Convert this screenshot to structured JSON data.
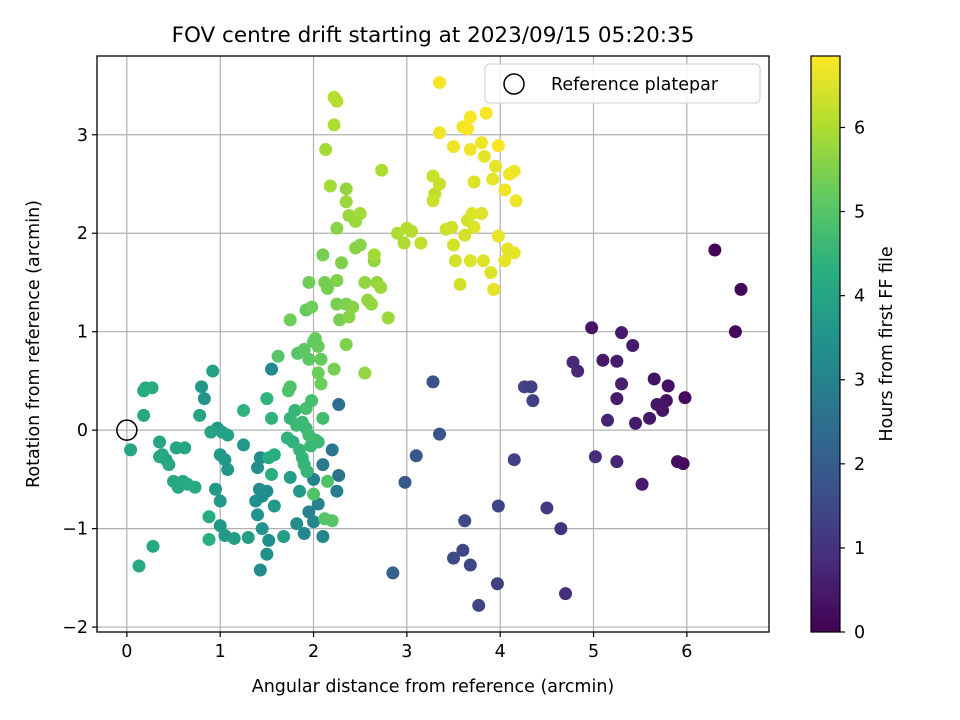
{
  "chart_data": {
    "type": "scatter",
    "title": "FOV centre drift starting at 2023/09/15 05:20:35",
    "xlabel": "Angular distance from reference (arcmin)",
    "ylabel": "Rotation from reference (arcmin)",
    "xlim": [
      -0.32,
      6.88
    ],
    "ylim": [
      -2.05,
      3.8
    ],
    "x_ticks": [
      0,
      1,
      2,
      3,
      4,
      5,
      6
    ],
    "y_ticks": [
      -2,
      -1,
      0,
      1,
      2,
      3
    ],
    "x_tick_labels": [
      "0",
      "1",
      "2",
      "3",
      "4",
      "5",
      "6"
    ],
    "y_tick_labels": [
      "−2",
      "−1",
      "0",
      "1",
      "2",
      "3"
    ],
    "grid": true,
    "legend": {
      "placement": "top-right",
      "entries": [
        "Reference platepar"
      ]
    },
    "reference_point": {
      "x": 0,
      "y": 0
    },
    "colorbar": {
      "label": "Hours from first FF file",
      "range": [
        0,
        6.85
      ],
      "ticks": [
        0,
        1,
        2,
        3,
        4,
        5,
        6
      ],
      "tick_labels": [
        "0",
        "1",
        "2",
        "3",
        "4",
        "5",
        "6"
      ],
      "colormap": "viridis"
    },
    "points": [
      {
        "x": 6.3,
        "y": 1.83,
        "c": 0.05
      },
      {
        "x": 6.58,
        "y": 1.43,
        "c": 0.1
      },
      {
        "x": 6.52,
        "y": 1.0,
        "c": 0.15
      },
      {
        "x": 4.98,
        "y": 1.04,
        "c": 0.4
      },
      {
        "x": 5.3,
        "y": 0.99,
        "c": 0.5
      },
      {
        "x": 5.1,
        "y": 0.71,
        "c": 0.45
      },
      {
        "x": 5.25,
        "y": 0.7,
        "c": 0.55
      },
      {
        "x": 5.42,
        "y": 0.86,
        "c": 0.5
      },
      {
        "x": 4.78,
        "y": 0.69,
        "c": 0.8
      },
      {
        "x": 4.83,
        "y": 0.6,
        "c": 0.75
      },
      {
        "x": 5.3,
        "y": 0.47,
        "c": 0.6
      },
      {
        "x": 5.65,
        "y": 0.52,
        "c": 0.35
      },
      {
        "x": 5.8,
        "y": 0.45,
        "c": 0.3
      },
      {
        "x": 5.25,
        "y": 0.32,
        "c": 0.55
      },
      {
        "x": 5.68,
        "y": 0.26,
        "c": 0.4
      },
      {
        "x": 5.78,
        "y": 0.3,
        "c": 0.35
      },
      {
        "x": 5.98,
        "y": 0.33,
        "c": 0.2
      },
      {
        "x": 5.74,
        "y": 0.2,
        "c": 0.4
      },
      {
        "x": 5.15,
        "y": 0.1,
        "c": 0.7
      },
      {
        "x": 5.45,
        "y": 0.07,
        "c": 0.5
      },
      {
        "x": 5.6,
        "y": 0.12,
        "c": 0.45
      },
      {
        "x": 5.02,
        "y": -0.27,
        "c": 0.85
      },
      {
        "x": 5.25,
        "y": -0.32,
        "c": 0.7
      },
      {
        "x": 5.9,
        "y": -0.32,
        "c": 0.25
      },
      {
        "x": 5.96,
        "y": -0.34,
        "c": 0.2
      },
      {
        "x": 5.52,
        "y": -0.55,
        "c": 0.5
      },
      {
        "x": 4.26,
        "y": 0.44,
        "c": 1.35
      },
      {
        "x": 4.33,
        "y": 0.44,
        "c": 1.3
      },
      {
        "x": 4.35,
        "y": 0.3,
        "c": 1.3
      },
      {
        "x": 4.15,
        "y": -0.3,
        "c": 1.3
      },
      {
        "x": 4.5,
        "y": -0.79,
        "c": 1.1
      },
      {
        "x": 4.65,
        "y": -1.0,
        "c": 1.0
      },
      {
        "x": 4.7,
        "y": -1.66,
        "c": 0.9
      },
      {
        "x": 3.98,
        "y": -0.77,
        "c": 1.4
      },
      {
        "x": 3.62,
        "y": -0.92,
        "c": 1.5
      },
      {
        "x": 3.5,
        "y": -1.3,
        "c": 1.5
      },
      {
        "x": 3.6,
        "y": -1.22,
        "c": 1.45
      },
      {
        "x": 3.68,
        "y": -1.37,
        "c": 1.45
      },
      {
        "x": 3.77,
        "y": -1.78,
        "c": 1.4
      },
      {
        "x": 3.97,
        "y": -1.56,
        "c": 1.35
      },
      {
        "x": 3.28,
        "y": 0.49,
        "c": 1.7
      },
      {
        "x": 3.35,
        "y": -0.04,
        "c": 1.75
      },
      {
        "x": 3.1,
        "y": -0.26,
        "c": 1.85
      },
      {
        "x": 2.98,
        "y": -0.53,
        "c": 1.9
      },
      {
        "x": 2.85,
        "y": -1.45,
        "c": 2.1
      },
      {
        "x": 2.27,
        "y": 0.26,
        "c": 2.5
      },
      {
        "x": 2.27,
        "y": -0.46,
        "c": 2.6
      },
      {
        "x": 2.2,
        "y": -0.2,
        "c": 2.7
      },
      {
        "x": 2.1,
        "y": -0.35,
        "c": 2.8
      },
      {
        "x": 2.0,
        "y": -0.5,
        "c": 3.0
      },
      {
        "x": 2.25,
        "y": -0.62,
        "c": 2.9
      },
      {
        "x": 2.05,
        "y": -0.75,
        "c": 3.0
      },
      {
        "x": 1.95,
        "y": -0.83,
        "c": 3.0
      },
      {
        "x": 2.0,
        "y": -0.93,
        "c": 3.1
      },
      {
        "x": 1.9,
        "y": -1.05,
        "c": 3.2
      },
      {
        "x": 2.1,
        "y": -1.08,
        "c": 3.1
      },
      {
        "x": 1.82,
        "y": -0.95,
        "c": 3.3
      },
      {
        "x": 1.55,
        "y": 0.62,
        "c": 3.2
      },
      {
        "x": 1.43,
        "y": -0.28,
        "c": 3.3
      },
      {
        "x": 1.4,
        "y": -0.38,
        "c": 3.4
      },
      {
        "x": 1.5,
        "y": -0.62,
        "c": 3.3
      },
      {
        "x": 1.42,
        "y": -0.6,
        "c": 3.3
      },
      {
        "x": 1.45,
        "y": -0.67,
        "c": 3.4
      },
      {
        "x": 1.38,
        "y": -0.72,
        "c": 3.4
      },
      {
        "x": 1.4,
        "y": -0.86,
        "c": 3.5
      },
      {
        "x": 1.45,
        "y": -1.0,
        "c": 3.5
      },
      {
        "x": 1.52,
        "y": -1.12,
        "c": 3.4
      },
      {
        "x": 1.5,
        "y": -1.26,
        "c": 3.4
      },
      {
        "x": 1.43,
        "y": -1.42,
        "c": 3.3
      },
      {
        "x": 1.25,
        "y": -0.15,
        "c": 3.6
      },
      {
        "x": 1.05,
        "y": -0.3,
        "c": 3.6
      },
      {
        "x": 1.0,
        "y": -0.25,
        "c": 3.7
      },
      {
        "x": 1.08,
        "y": -0.4,
        "c": 3.6
      },
      {
        "x": 0.95,
        "y": -0.6,
        "c": 3.7
      },
      {
        "x": 1.0,
        "y": -0.72,
        "c": 3.7
      },
      {
        "x": 1.0,
        "y": -0.97,
        "c": 3.7
      },
      {
        "x": 1.05,
        "y": -1.07,
        "c": 3.7
      },
      {
        "x": 1.15,
        "y": -1.1,
        "c": 3.8
      },
      {
        "x": 1.3,
        "y": -1.09,
        "c": 3.8
      },
      {
        "x": 1.68,
        "y": -1.08,
        "c": 3.8
      },
      {
        "x": 1.58,
        "y": -0.77,
        "c": 3.7
      },
      {
        "x": 1.75,
        "y": -0.48,
        "c": 3.8
      },
      {
        "x": 1.85,
        "y": -0.62,
        "c": 3.7
      },
      {
        "x": 0.83,
        "y": 0.32,
        "c": 3.5
      },
      {
        "x": 0.8,
        "y": 0.44,
        "c": 3.6
      },
      {
        "x": 0.97,
        "y": 0.02,
        "c": 3.7
      },
      {
        "x": 1.02,
        "y": -0.02,
        "c": 3.8
      },
      {
        "x": 1.08,
        "y": -0.05,
        "c": 3.9
      },
      {
        "x": 0.92,
        "y": 0.6,
        "c": 3.9
      },
      {
        "x": 0.78,
        "y": 0.15,
        "c": 4.0
      },
      {
        "x": 0.9,
        "y": -0.02,
        "c": 4.0
      },
      {
        "x": 0.62,
        "y": -0.18,
        "c": 4.0
      },
      {
        "x": 0.53,
        "y": -0.18,
        "c": 4.0
      },
      {
        "x": 0.35,
        "y": -0.12,
        "c": 4.0
      },
      {
        "x": 0.38,
        "y": -0.25,
        "c": 4.0
      },
      {
        "x": 0.42,
        "y": -0.3,
        "c": 4.0
      },
      {
        "x": 0.35,
        "y": -0.27,
        "c": 4.1
      },
      {
        "x": 0.45,
        "y": -0.35,
        "c": 4.1
      },
      {
        "x": 0.5,
        "y": -0.52,
        "c": 4.1
      },
      {
        "x": 0.55,
        "y": -0.58,
        "c": 4.1
      },
      {
        "x": 0.6,
        "y": -0.52,
        "c": 4.1
      },
      {
        "x": 0.65,
        "y": -0.55,
        "c": 4.2
      },
      {
        "x": 0.73,
        "y": -0.58,
        "c": 4.2
      },
      {
        "x": 0.88,
        "y": -0.88,
        "c": 4.2
      },
      {
        "x": 0.88,
        "y": -1.11,
        "c": 4.3
      },
      {
        "x": 0.28,
        "y": -1.18,
        "c": 4.1
      },
      {
        "x": 0.13,
        "y": -1.38,
        "c": 4.1
      },
      {
        "x": 0.04,
        "y": -0.2,
        "c": 4.0
      },
      {
        "x": 0.18,
        "y": 0.15,
        "c": 4.1
      },
      {
        "x": 0.18,
        "y": 0.4,
        "c": 4.2
      },
      {
        "x": 0.2,
        "y": 0.43,
        "c": 4.2
      },
      {
        "x": 0.27,
        "y": 0.43,
        "c": 4.2
      },
      {
        "x": 1.25,
        "y": 0.2,
        "c": 4.4
      },
      {
        "x": 1.5,
        "y": 0.32,
        "c": 4.4
      },
      {
        "x": 1.55,
        "y": 0.12,
        "c": 4.4
      },
      {
        "x": 1.52,
        "y": -0.28,
        "c": 4.3
      },
      {
        "x": 1.55,
        "y": -0.45,
        "c": 4.3
      },
      {
        "x": 1.58,
        "y": -0.25,
        "c": 4.3
      },
      {
        "x": 1.72,
        "y": -0.08,
        "c": 4.4
      },
      {
        "x": 1.78,
        "y": -0.12,
        "c": 4.4
      },
      {
        "x": 1.85,
        "y": -0.2,
        "c": 4.5
      },
      {
        "x": 1.88,
        "y": -0.28,
        "c": 4.5
      },
      {
        "x": 1.9,
        "y": -0.35,
        "c": 4.5
      },
      {
        "x": 1.93,
        "y": -0.42,
        "c": 4.5
      },
      {
        "x": 1.97,
        "y": -0.16,
        "c": 4.6
      },
      {
        "x": 2.02,
        "y": -0.1,
        "c": 4.6
      },
      {
        "x": 2.05,
        "y": -0.12,
        "c": 4.6
      },
      {
        "x": 1.75,
        "y": 0.12,
        "c": 4.5
      },
      {
        "x": 1.8,
        "y": 0.2,
        "c": 4.5
      },
      {
        "x": 1.82,
        "y": 0.05,
        "c": 4.6
      },
      {
        "x": 1.88,
        "y": 0.08,
        "c": 4.6
      },
      {
        "x": 1.92,
        "y": 0.02,
        "c": 4.6
      },
      {
        "x": 1.95,
        "y": -0.05,
        "c": 4.7
      },
      {
        "x": 2.1,
        "y": 0.12,
        "c": 4.7
      },
      {
        "x": 1.98,
        "y": 0.3,
        "c": 4.8
      },
      {
        "x": 1.92,
        "y": 0.22,
        "c": 4.8
      },
      {
        "x": 2.15,
        "y": -0.52,
        "c": 4.9
      },
      {
        "x": 2.2,
        "y": -0.92,
        "c": 5.0
      },
      {
        "x": 2.12,
        "y": -0.9,
        "c": 5.0
      },
      {
        "x": 2.0,
        "y": -0.65,
        "c": 4.9
      },
      {
        "x": 1.73,
        "y": 0.4,
        "c": 4.9
      },
      {
        "x": 1.75,
        "y": 0.44,
        "c": 4.9
      },
      {
        "x": 1.62,
        "y": 0.75,
        "c": 5.0
      },
      {
        "x": 1.83,
        "y": 0.78,
        "c": 5.0
      },
      {
        "x": 1.9,
        "y": 0.82,
        "c": 5.1
      },
      {
        "x": 1.95,
        "y": 0.72,
        "c": 5.1
      },
      {
        "x": 2.0,
        "y": 0.9,
        "c": 5.1
      },
      {
        "x": 2.02,
        "y": 0.93,
        "c": 5.2
      },
      {
        "x": 2.05,
        "y": 0.85,
        "c": 5.2
      },
      {
        "x": 2.08,
        "y": 0.72,
        "c": 5.2
      },
      {
        "x": 1.92,
        "y": 1.22,
        "c": 5.2
      },
      {
        "x": 1.98,
        "y": 1.25,
        "c": 5.3
      },
      {
        "x": 2.05,
        "y": 0.58,
        "c": 5.3
      },
      {
        "x": 2.08,
        "y": 0.47,
        "c": 5.3
      },
      {
        "x": 1.75,
        "y": 1.12,
        "c": 5.3
      },
      {
        "x": 1.95,
        "y": 1.5,
        "c": 5.3
      },
      {
        "x": 2.12,
        "y": 1.5,
        "c": 5.4
      },
      {
        "x": 2.15,
        "y": 1.44,
        "c": 5.4
      },
      {
        "x": 2.22,
        "y": 0.62,
        "c": 5.4
      },
      {
        "x": 2.25,
        "y": 1.28,
        "c": 5.4
      },
      {
        "x": 2.28,
        "y": 1.12,
        "c": 5.4
      },
      {
        "x": 2.35,
        "y": 0.87,
        "c": 5.5
      },
      {
        "x": 2.1,
        "y": 1.78,
        "c": 5.4
      },
      {
        "x": 2.25,
        "y": 1.52,
        "c": 5.5
      },
      {
        "x": 2.3,
        "y": 1.7,
        "c": 5.5
      },
      {
        "x": 2.35,
        "y": 1.28,
        "c": 5.5
      },
      {
        "x": 2.38,
        "y": 1.15,
        "c": 5.6
      },
      {
        "x": 2.42,
        "y": 1.25,
        "c": 5.6
      },
      {
        "x": 2.45,
        "y": 1.85,
        "c": 5.6
      },
      {
        "x": 2.5,
        "y": 1.88,
        "c": 5.6
      },
      {
        "x": 2.55,
        "y": 1.5,
        "c": 5.7
      },
      {
        "x": 2.58,
        "y": 1.32,
        "c": 5.7
      },
      {
        "x": 2.62,
        "y": 1.28,
        "c": 5.7
      },
      {
        "x": 2.65,
        "y": 1.72,
        "c": 5.7
      },
      {
        "x": 2.68,
        "y": 1.5,
        "c": 5.7
      },
      {
        "x": 2.72,
        "y": 1.45,
        "c": 5.8
      },
      {
        "x": 2.8,
        "y": 1.14,
        "c": 5.8
      },
      {
        "x": 2.55,
        "y": 0.58,
        "c": 5.7
      },
      {
        "x": 2.25,
        "y": 2.05,
        "c": 5.6
      },
      {
        "x": 2.35,
        "y": 2.45,
        "c": 5.7
      },
      {
        "x": 2.35,
        "y": 2.32,
        "c": 5.8
      },
      {
        "x": 2.38,
        "y": 2.18,
        "c": 5.8
      },
      {
        "x": 2.45,
        "y": 2.12,
        "c": 5.8
      },
      {
        "x": 2.5,
        "y": 2.2,
        "c": 5.9
      },
      {
        "x": 2.18,
        "y": 2.48,
        "c": 5.9
      },
      {
        "x": 2.13,
        "y": 2.85,
        "c": 5.9
      },
      {
        "x": 2.22,
        "y": 3.1,
        "c": 6.0
      },
      {
        "x": 2.22,
        "y": 3.38,
        "c": 6.1
      },
      {
        "x": 2.25,
        "y": 3.34,
        "c": 6.1
      },
      {
        "x": 2.73,
        "y": 2.64,
        "c": 6.0
      },
      {
        "x": 2.65,
        "y": 1.78,
        "c": 5.9
      },
      {
        "x": 2.9,
        "y": 2.0,
        "c": 6.0
      },
      {
        "x": 2.97,
        "y": 1.9,
        "c": 6.0
      },
      {
        "x": 3.0,
        "y": 2.05,
        "c": 6.1
      },
      {
        "x": 3.05,
        "y": 2.02,
        "c": 6.1
      },
      {
        "x": 3.15,
        "y": 1.9,
        "c": 6.2
      },
      {
        "x": 3.3,
        "y": 2.4,
        "c": 6.2
      },
      {
        "x": 3.35,
        "y": 2.5,
        "c": 6.3
      },
      {
        "x": 3.28,
        "y": 2.33,
        "c": 6.3
      },
      {
        "x": 3.28,
        "y": 2.58,
        "c": 6.3
      },
      {
        "x": 3.42,
        "y": 2.04,
        "c": 6.3
      },
      {
        "x": 3.48,
        "y": 2.06,
        "c": 6.4
      },
      {
        "x": 3.5,
        "y": 1.88,
        "c": 6.4
      },
      {
        "x": 3.52,
        "y": 1.72,
        "c": 6.4
      },
      {
        "x": 3.57,
        "y": 1.48,
        "c": 6.4
      },
      {
        "x": 3.62,
        "y": 1.98,
        "c": 6.4
      },
      {
        "x": 3.65,
        "y": 2.13,
        "c": 6.4
      },
      {
        "x": 3.68,
        "y": 1.72,
        "c": 6.5
      },
      {
        "x": 3.7,
        "y": 2.2,
        "c": 6.5
      },
      {
        "x": 3.72,
        "y": 2.06,
        "c": 6.5
      },
      {
        "x": 3.8,
        "y": 2.2,
        "c": 6.5
      },
      {
        "x": 3.82,
        "y": 1.72,
        "c": 6.5
      },
      {
        "x": 3.9,
        "y": 1.6,
        "c": 6.5
      },
      {
        "x": 3.93,
        "y": 1.43,
        "c": 6.6
      },
      {
        "x": 3.98,
        "y": 1.97,
        "c": 6.6
      },
      {
        "x": 4.05,
        "y": 1.72,
        "c": 6.6
      },
      {
        "x": 4.08,
        "y": 1.84,
        "c": 6.6
      },
      {
        "x": 4.15,
        "y": 1.8,
        "c": 6.6
      },
      {
        "x": 3.72,
        "y": 2.52,
        "c": 6.5
      },
      {
        "x": 3.83,
        "y": 2.78,
        "c": 6.6
      },
      {
        "x": 3.92,
        "y": 2.55,
        "c": 6.6
      },
      {
        "x": 3.95,
        "y": 2.68,
        "c": 6.6
      },
      {
        "x": 4.05,
        "y": 2.44,
        "c": 6.7
      },
      {
        "x": 4.1,
        "y": 2.6,
        "c": 6.7
      },
      {
        "x": 4.15,
        "y": 2.63,
        "c": 6.7
      },
      {
        "x": 4.17,
        "y": 2.33,
        "c": 6.7
      },
      {
        "x": 3.5,
        "y": 2.88,
        "c": 6.7
      },
      {
        "x": 3.68,
        "y": 2.85,
        "c": 6.7
      },
      {
        "x": 3.8,
        "y": 2.92,
        "c": 6.7
      },
      {
        "x": 3.98,
        "y": 2.89,
        "c": 6.8
      },
      {
        "x": 3.35,
        "y": 3.02,
        "c": 6.7
      },
      {
        "x": 3.6,
        "y": 3.08,
        "c": 6.7
      },
      {
        "x": 3.65,
        "y": 3.06,
        "c": 6.8
      },
      {
        "x": 3.68,
        "y": 3.18,
        "c": 6.8
      },
      {
        "x": 3.85,
        "y": 3.22,
        "c": 6.8
      },
      {
        "x": 3.35,
        "y": 3.53,
        "c": 6.8
      }
    ]
  }
}
